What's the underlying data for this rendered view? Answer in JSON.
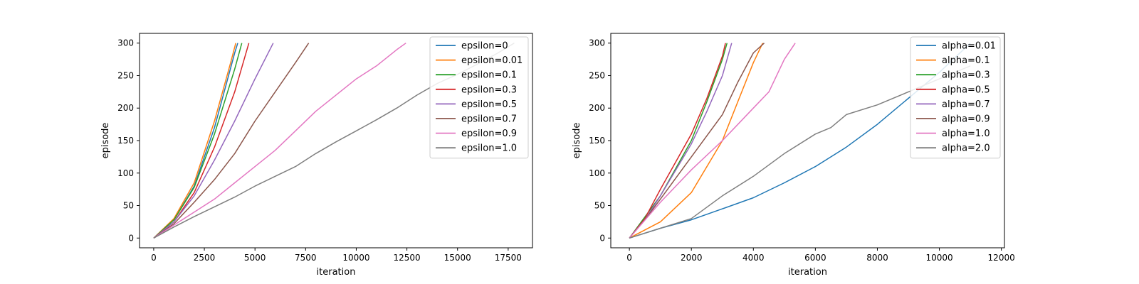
{
  "chart_data": [
    {
      "type": "line",
      "title": "",
      "xlabel": "iteration",
      "ylabel": "episode",
      "xlim": [
        -700,
        18700
      ],
      "ylim": [
        -15,
        315
      ],
      "xticks": [
        0,
        2500,
        5000,
        7500,
        10000,
        12500,
        15000,
        17500
      ],
      "xtick_labels": [
        "0",
        "2500",
        "5000",
        "7500",
        "10000",
        "12500",
        "15000",
        "17500"
      ],
      "yticks": [
        0,
        50,
        100,
        150,
        200,
        250,
        300
      ],
      "ytick_labels": [
        "0",
        "50",
        "100",
        "150",
        "200",
        "250",
        "300"
      ],
      "grid": false,
      "legend_position": "top-right",
      "series": [
        {
          "name": "epsilon=0",
          "color": "#1f77b4",
          "x": [
            0,
            1000,
            2000,
            3000,
            4000,
            4150
          ],
          "y": [
            0,
            28,
            80,
            170,
            285,
            300
          ]
        },
        {
          "name": "epsilon=0.01",
          "color": "#ff7f0e",
          "x": [
            0,
            1000,
            2000,
            3000,
            3800,
            4050
          ],
          "y": [
            0,
            30,
            85,
            180,
            270,
            300
          ]
        },
        {
          "name": "epsilon=0.1",
          "color": "#2ca02c",
          "x": [
            0,
            1000,
            2000,
            3000,
            4000,
            4350
          ],
          "y": [
            0,
            28,
            78,
            160,
            260,
            300
          ]
        },
        {
          "name": "epsilon=0.3",
          "color": "#d62728",
          "x": [
            0,
            1000,
            2000,
            3000,
            4000,
            4700
          ],
          "y": [
            0,
            25,
            70,
            140,
            225,
            300
          ]
        },
        {
          "name": "epsilon=0.5",
          "color": "#9467bd",
          "x": [
            0,
            1000,
            2000,
            3000,
            4000,
            5000,
            5900
          ],
          "y": [
            0,
            25,
            65,
            120,
            180,
            245,
            300
          ]
        },
        {
          "name": "epsilon=0.7",
          "color": "#8c564b",
          "x": [
            0,
            1000,
            2000,
            3000,
            4000,
            5000,
            6000,
            7000,
            7650
          ],
          "y": [
            0,
            22,
            55,
            90,
            130,
            180,
            225,
            270,
            300
          ]
        },
        {
          "name": "epsilon=0.9",
          "color": "#e377c2",
          "x": [
            0,
            1000,
            2000,
            3000,
            4000,
            5000,
            6000,
            7000,
            8000,
            9000,
            10000,
            11000,
            12000,
            12450
          ],
          "y": [
            0,
            20,
            40,
            60,
            85,
            110,
            135,
            165,
            195,
            220,
            245,
            265,
            290,
            300
          ]
        },
        {
          "name": "epsilon=1.0",
          "color": "#7f7f7f",
          "x": [
            0,
            1000,
            2000,
            3000,
            4000,
            5000,
            6000,
            7000,
            8000,
            9000,
            10000,
            11000,
            12000,
            13000,
            14000,
            15000,
            16000,
            17000,
            17800
          ],
          "y": [
            0,
            17,
            33,
            48,
            63,
            80,
            95,
            110,
            130,
            148,
            165,
            182,
            200,
            220,
            238,
            252,
            268,
            285,
            300
          ]
        }
      ]
    },
    {
      "type": "line",
      "title": "",
      "xlabel": "iteration",
      "ylabel": "episode",
      "xlim": [
        -600,
        12100
      ],
      "ylim": [
        -15,
        315
      ],
      "xticks": [
        0,
        2000,
        4000,
        6000,
        8000,
        10000,
        12000
      ],
      "xtick_labels": [
        "0",
        "2000",
        "4000",
        "6000",
        "8000",
        "10000",
        "12000"
      ],
      "yticks": [
        0,
        50,
        100,
        150,
        200,
        250,
        300
      ],
      "ytick_labels": [
        "0",
        "50",
        "100",
        "150",
        "200",
        "250",
        "300"
      ],
      "grid": false,
      "legend_position": "top-right",
      "series": [
        {
          "name": "alpha=0.01",
          "color": "#1f77b4",
          "x": [
            0,
            1000,
            2000,
            3000,
            4000,
            5000,
            6000,
            7000,
            8000,
            9000,
            10000,
            11000
          ],
          "y": [
            0,
            15,
            28,
            45,
            62,
            85,
            110,
            140,
            175,
            215,
            255,
            300
          ]
        },
        {
          "name": "alpha=0.1",
          "color": "#ff7f0e",
          "x": [
            0,
            1000,
            2000,
            3000,
            3500,
            4000,
            4300
          ],
          "y": [
            0,
            25,
            70,
            150,
            210,
            270,
            300
          ]
        },
        {
          "name": "alpha=0.3",
          "color": "#2ca02c",
          "x": [
            0,
            1000,
            2000,
            2500,
            3000,
            3150
          ],
          "y": [
            0,
            65,
            150,
            210,
            275,
            300
          ]
        },
        {
          "name": "alpha=0.5",
          "color": "#d62728",
          "x": [
            0,
            500,
            1000,
            2000,
            2500,
            3000,
            3100
          ],
          "y": [
            0,
            30,
            75,
            160,
            215,
            280,
            300
          ]
        },
        {
          "name": "alpha=0.7",
          "color": "#9467bd",
          "x": [
            0,
            500,
            1000,
            2000,
            2500,
            3000,
            3300
          ],
          "y": [
            0,
            28,
            65,
            145,
            195,
            250,
            300
          ]
        },
        {
          "name": "alpha=0.9",
          "color": "#8c564b",
          "x": [
            0,
            500,
            1000,
            2000,
            3000,
            3500,
            4000,
            4350
          ],
          "y": [
            0,
            28,
            60,
            125,
            190,
            240,
            285,
            300
          ]
        },
        {
          "name": "alpha=1.0",
          "color": "#e377c2",
          "x": [
            0,
            1000,
            2000,
            3000,
            4000,
            4500,
            5000,
            5350
          ],
          "y": [
            0,
            55,
            105,
            150,
            200,
            225,
            275,
            300
          ]
        },
        {
          "name": "alpha=2.0",
          "color": "#7f7f7f",
          "x": [
            0,
            1000,
            2000,
            3000,
            4000,
            5000,
            6000,
            6500,
            7000,
            8000,
            9000,
            10000,
            11000
          ],
          "y": [
            0,
            15,
            30,
            65,
            95,
            130,
            160,
            170,
            190,
            205,
            225,
            245,
            265
          ]
        }
      ]
    }
  ]
}
